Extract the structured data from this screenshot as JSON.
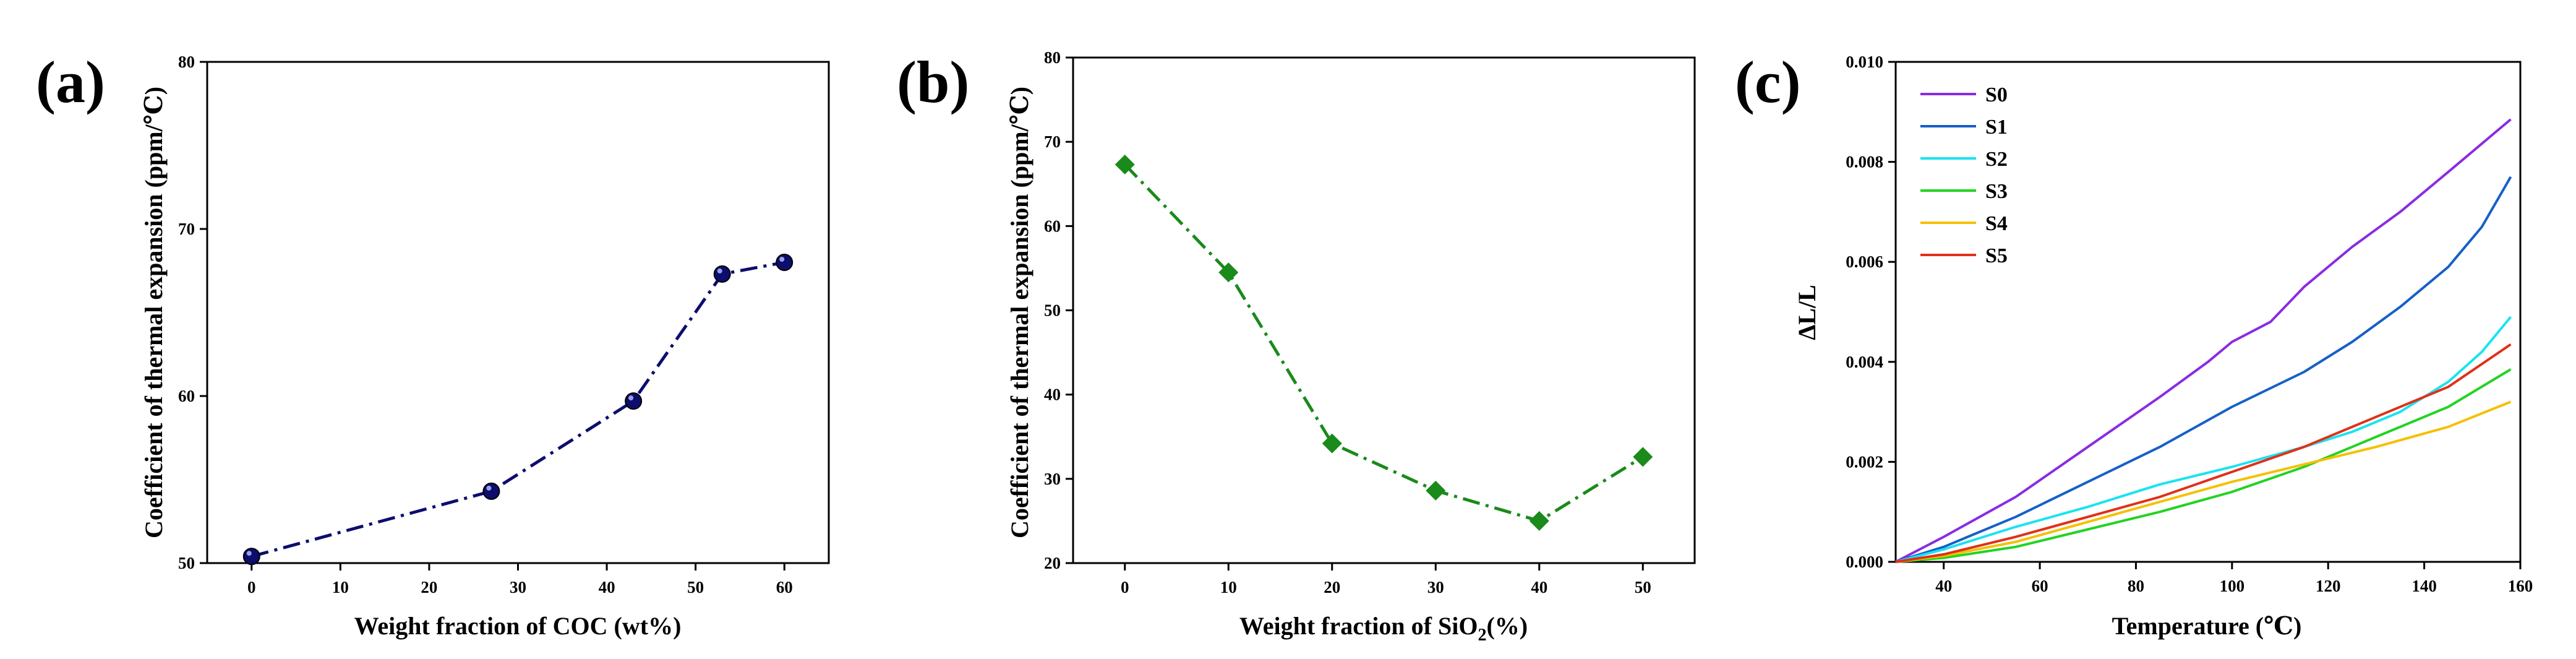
{
  "chart_data": [
    {
      "panel": "(a)",
      "type": "line",
      "marker": "circle",
      "line_style": "dash-dot",
      "color": "#0d0d6e",
      "x": [
        0,
        27,
        43,
        53,
        60
      ],
      "y": [
        50.4,
        54.3,
        59.7,
        67.3,
        68.0
      ],
      "xlabel": "Weight fraction of COC (wt%)",
      "ylabel": "Coefficient of thermal expansion (ppm/℃)",
      "xlim": [
        -5,
        65
      ],
      "ylim": [
        50,
        80
      ],
      "xticks": [
        0,
        10,
        20,
        30,
        40,
        50,
        60
      ],
      "yticks": [
        50,
        60,
        70,
        80
      ],
      "xtick_labels": [
        "0",
        "10",
        "20",
        "30",
        "40",
        "50",
        "60"
      ],
      "ytick_labels": [
        "50",
        "60",
        "70",
        "80"
      ]
    },
    {
      "panel": "(b)",
      "type": "line",
      "marker": "diamond",
      "line_style": "dash-dot",
      "color": "#1a8a1a",
      "x": [
        0,
        10,
        20,
        30,
        40,
        50
      ],
      "y": [
        67.3,
        54.5,
        34.2,
        28.6,
        25.0,
        32.6
      ],
      "xlabel_main": "Weight fraction of SiO",
      "xlabel_sub": "2",
      "xlabel_suffix": "(%)",
      "ylabel": "Coefficient of thermal expansion (ppm/℃)",
      "xlim": [
        -5,
        55
      ],
      "ylim": [
        20,
        80
      ],
      "xticks": [
        0,
        10,
        20,
        30,
        40,
        50
      ],
      "yticks": [
        20,
        30,
        40,
        50,
        60,
        70,
        80
      ],
      "xtick_labels": [
        "0",
        "10",
        "20",
        "30",
        "40",
        "50"
      ],
      "ytick_labels": [
        "20",
        "30",
        "40",
        "50",
        "60",
        "70",
        "80"
      ]
    },
    {
      "panel": "(c)",
      "type": "line",
      "xlabel": "Temperature (℃)",
      "ylabel": "ΔL/L",
      "xlim": [
        30,
        160
      ],
      "ylim": [
        0,
        0.01
      ],
      "xticks": [
        40,
        60,
        80,
        100,
        120,
        140,
        160
      ],
      "yticks": [
        0,
        0.002,
        0.004,
        0.006,
        0.008,
        0.01
      ],
      "xtick_labels": [
        "40",
        "60",
        "80",
        "100",
        "120",
        "140",
        "160"
      ],
      "ytick_labels": [
        "0.000",
        "0.002",
        "0.004",
        "0.006",
        "0.008",
        "0.010"
      ],
      "legend_position": "top-left",
      "series": [
        {
          "name": "S0",
          "color": "#8a2be2",
          "x": [
            30,
            40,
            55,
            70,
            85,
            95,
            100,
            108,
            115,
            125,
            135,
            145,
            158
          ],
          "y": [
            0.0,
            0.0005,
            0.0013,
            0.0023,
            0.0033,
            0.004,
            0.0044,
            0.0048,
            0.0055,
            0.0063,
            0.007,
            0.0078,
            0.00885
          ]
        },
        {
          "name": "S1",
          "color": "#1560c8",
          "x": [
            30,
            40,
            55,
            70,
            85,
            100,
            115,
            125,
            135,
            145,
            152,
            158
          ],
          "y": [
            0.0,
            0.0003,
            0.0009,
            0.0016,
            0.0023,
            0.0031,
            0.0038,
            0.0044,
            0.0051,
            0.0059,
            0.0067,
            0.0077
          ]
        },
        {
          "name": "S2",
          "color": "#19e3f0",
          "x": [
            30,
            40,
            55,
            70,
            85,
            100,
            115,
            125,
            135,
            145,
            152,
            158
          ],
          "y": [
            0.0,
            0.00025,
            0.0007,
            0.0011,
            0.00155,
            0.0019,
            0.0023,
            0.0026,
            0.003,
            0.0036,
            0.0042,
            0.0049
          ]
        },
        {
          "name": "S3",
          "color": "#22d322",
          "x": [
            30,
            40,
            55,
            70,
            85,
            100,
            115,
            130,
            145,
            158
          ],
          "y": [
            0.0,
            8e-05,
            0.0003,
            0.00065,
            0.001,
            0.0014,
            0.0019,
            0.0025,
            0.0031,
            0.00385
          ]
        },
        {
          "name": "S4",
          "color": "#f5c000",
          "x": [
            30,
            40,
            55,
            70,
            85,
            100,
            115,
            130,
            145,
            158
          ],
          "y": [
            0.0,
            0.00012,
            0.0004,
            0.0008,
            0.0012,
            0.0016,
            0.00195,
            0.0023,
            0.0027,
            0.0032
          ]
        },
        {
          "name": "S5",
          "color": "#e03018",
          "x": [
            30,
            40,
            55,
            70,
            85,
            100,
            115,
            130,
            145,
            158
          ],
          "y": [
            0.0,
            0.00015,
            0.0005,
            0.0009,
            0.0013,
            0.0018,
            0.0023,
            0.0029,
            0.0035,
            0.00435
          ]
        }
      ]
    }
  ]
}
